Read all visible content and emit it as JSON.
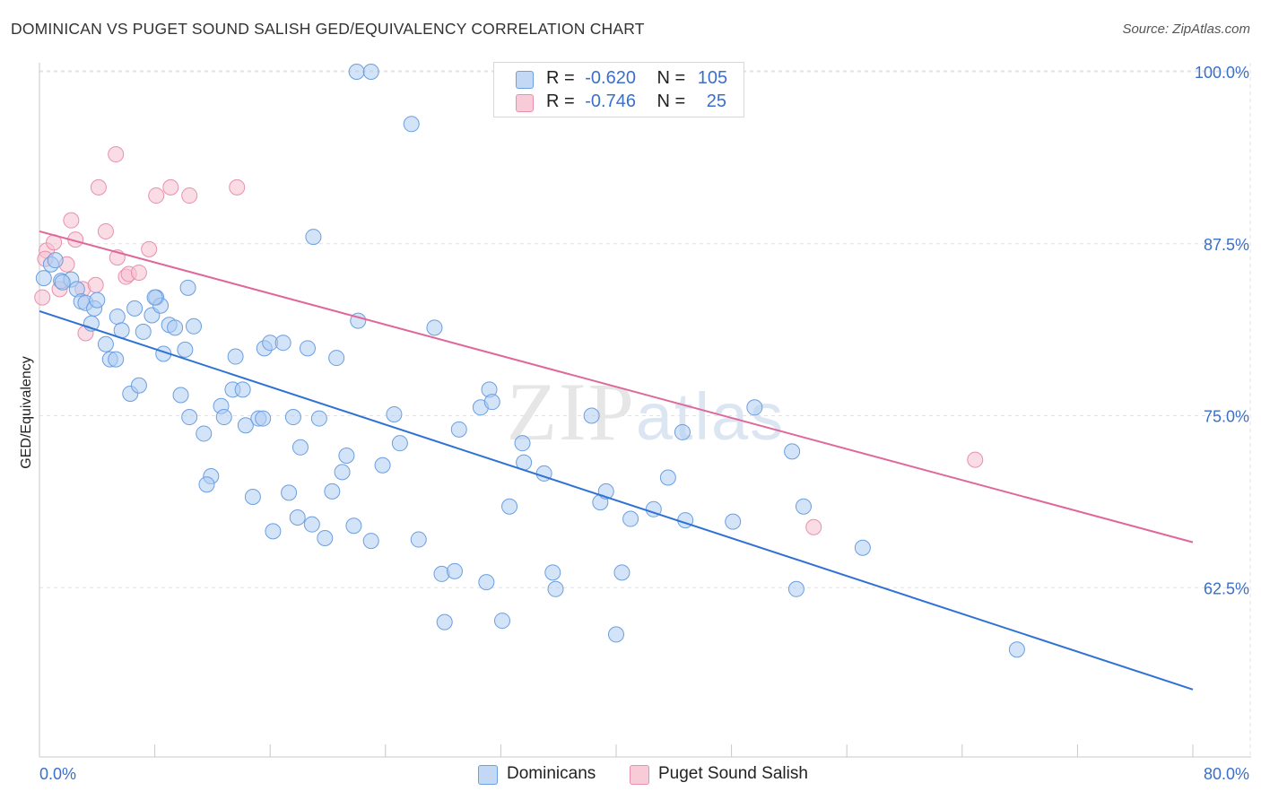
{
  "title": "DOMINICAN VS PUGET SOUND SALISH GED/EQUIVALENCY CORRELATION CHART",
  "source": "Source: ZipAtlas.com",
  "watermark": "ZIPatlas",
  "legend": {
    "rows": [
      {
        "r_label": "R =",
        "r_value": "-0.620",
        "n_label": "N =",
        "n_value": "105"
      },
      {
        "r_label": "R =",
        "r_value": "-0.746",
        "n_label": "N =",
        "n_value": "25"
      }
    ]
  },
  "colors": {
    "blue_fill": "#aeccf2",
    "blue_stroke": "#6b9fe0",
    "blue_line": "#2f72d4",
    "pink_fill": "#f6bfd0",
    "pink_stroke": "#e890ae",
    "pink_line": "#e0679a",
    "tick_label": "#3a6fcc",
    "grid": "#e2e2e2"
  },
  "chart_data": {
    "type": "scatter",
    "title": "DOMINICAN VS PUGET SOUND SALISH GED/EQUIVALENCY CORRELATION CHART",
    "xlabel": "",
    "ylabel": "GED/Equivalency",
    "xlim": [
      0,
      80
    ],
    "ylim": [
      50,
      100
    ],
    "x_tick_labels": [
      "0.0%",
      "80.0%"
    ],
    "y_ticks": [
      62.5,
      75.0,
      87.5,
      100.0
    ],
    "y_tick_labels": [
      "62.5%",
      "75.0%",
      "87.5%",
      "100.0%"
    ],
    "grid": true,
    "legend_position": "bottom",
    "series": [
      {
        "name": "Dominicans",
        "r": -0.62,
        "n": 105,
        "trend": {
          "x0": 0,
          "y0": 82.6,
          "x1": 80,
          "y1": 55.1
        },
        "points": [
          [
            0.3,
            85.0
          ],
          [
            0.8,
            86.0
          ],
          [
            1.1,
            86.3
          ],
          [
            1.5,
            84.8
          ],
          [
            2.2,
            84.9
          ],
          [
            2.6,
            84.2
          ],
          [
            2.9,
            83.3
          ],
          [
            3.2,
            83.2
          ],
          [
            3.8,
            82.8
          ],
          [
            4.0,
            83.4
          ],
          [
            3.6,
            81.7
          ],
          [
            4.6,
            80.2
          ],
          [
            5.4,
            82.2
          ],
          [
            5.7,
            81.2
          ],
          [
            6.6,
            82.8
          ],
          [
            7.2,
            81.1
          ],
          [
            7.8,
            82.3
          ],
          [
            8.1,
            83.6
          ],
          [
            8.4,
            83.0
          ],
          [
            9.0,
            81.6
          ],
          [
            9.4,
            81.4
          ],
          [
            10.3,
            84.3
          ],
          [
            10.7,
            81.5
          ],
          [
            4.9,
            79.1
          ],
          [
            5.3,
            79.1
          ],
          [
            6.3,
            76.6
          ],
          [
            6.9,
            77.2
          ],
          [
            8.6,
            79.5
          ],
          [
            10.1,
            79.8
          ],
          [
            9.8,
            76.5
          ],
          [
            10.4,
            74.9
          ],
          [
            11.4,
            73.7
          ],
          [
            11.9,
            70.6
          ],
          [
            11.6,
            70.0
          ],
          [
            12.6,
            75.7
          ],
          [
            12.8,
            74.9
          ],
          [
            13.4,
            76.9
          ],
          [
            13.6,
            79.3
          ],
          [
            14.1,
            76.9
          ],
          [
            14.3,
            74.3
          ],
          [
            14.8,
            69.1
          ],
          [
            15.2,
            74.8
          ],
          [
            15.5,
            74.8
          ],
          [
            15.6,
            79.9
          ],
          [
            16.0,
            80.3
          ],
          [
            16.2,
            66.6
          ],
          [
            16.9,
            80.3
          ],
          [
            17.3,
            69.4
          ],
          [
            17.6,
            74.9
          ],
          [
            17.9,
            67.6
          ],
          [
            18.1,
            72.7
          ],
          [
            18.6,
            79.9
          ],
          [
            18.9,
            67.1
          ],
          [
            19.4,
            74.8
          ],
          [
            19.8,
            66.1
          ],
          [
            20.3,
            69.5
          ],
          [
            20.6,
            79.2
          ],
          [
            21.0,
            70.9
          ],
          [
            21.3,
            72.1
          ],
          [
            21.8,
            67.0
          ],
          [
            22.1,
            81.9
          ],
          [
            23.0,
            65.9
          ],
          [
            23.8,
            71.4
          ],
          [
            24.6,
            75.1
          ],
          [
            25.0,
            73.0
          ],
          [
            25.8,
            96.2
          ],
          [
            26.3,
            66.0
          ],
          [
            27.4,
            81.4
          ],
          [
            27.9,
            63.5
          ],
          [
            28.1,
            60.0
          ],
          [
            28.8,
            63.7
          ],
          [
            29.1,
            74.0
          ],
          [
            30.6,
            75.6
          ],
          [
            31.0,
            62.9
          ],
          [
            31.2,
            76.9
          ],
          [
            31.4,
            76.0
          ],
          [
            32.1,
            60.1
          ],
          [
            32.6,
            68.4
          ],
          [
            33.5,
            73.0
          ],
          [
            33.6,
            71.6
          ],
          [
            35.0,
            70.8
          ],
          [
            35.6,
            63.6
          ],
          [
            35.8,
            62.4
          ],
          [
            38.3,
            75.0
          ],
          [
            38.9,
            68.7
          ],
          [
            39.3,
            69.5
          ],
          [
            40.0,
            59.1
          ],
          [
            40.4,
            63.6
          ],
          [
            41.0,
            67.5
          ],
          [
            42.6,
            68.2
          ],
          [
            43.6,
            70.5
          ],
          [
            44.6,
            73.8
          ],
          [
            44.8,
            67.4
          ],
          [
            48.1,
            67.3
          ],
          [
            49.6,
            75.6
          ],
          [
            52.2,
            72.4
          ],
          [
            52.5,
            62.4
          ],
          [
            53.0,
            68.4
          ],
          [
            57.1,
            65.4
          ],
          [
            67.8,
            58.0
          ],
          [
            22.0,
            100.0
          ],
          [
            23.0,
            100.0
          ],
          [
            19.0,
            88.0
          ],
          [
            8.0,
            83.6
          ],
          [
            1.6,
            84.7
          ]
        ]
      },
      {
        "name": "Puget Sound Salish",
        "r": -0.746,
        "n": 25,
        "trend": {
          "x0": 0,
          "y0": 88.4,
          "x1": 80,
          "y1": 65.8
        },
        "points": [
          [
            0.2,
            83.6
          ],
          [
            0.5,
            87.0
          ],
          [
            1.0,
            87.6
          ],
          [
            1.4,
            84.2
          ],
          [
            1.9,
            86.0
          ],
          [
            2.2,
            89.2
          ],
          [
            2.5,
            87.8
          ],
          [
            3.0,
            84.2
          ],
          [
            3.2,
            81.0
          ],
          [
            3.9,
            84.5
          ],
          [
            4.1,
            91.6
          ],
          [
            4.6,
            88.4
          ],
          [
            5.3,
            94.0
          ],
          [
            5.4,
            86.5
          ],
          [
            6.0,
            85.1
          ],
          [
            6.2,
            85.3
          ],
          [
            6.9,
            85.4
          ],
          [
            7.6,
            87.1
          ],
          [
            8.1,
            91.0
          ],
          [
            9.1,
            91.6
          ],
          [
            10.4,
            91.0
          ],
          [
            13.7,
            91.6
          ],
          [
            64.9,
            71.8
          ],
          [
            53.7,
            66.9
          ],
          [
            0.4,
            86.4
          ]
        ]
      }
    ]
  }
}
